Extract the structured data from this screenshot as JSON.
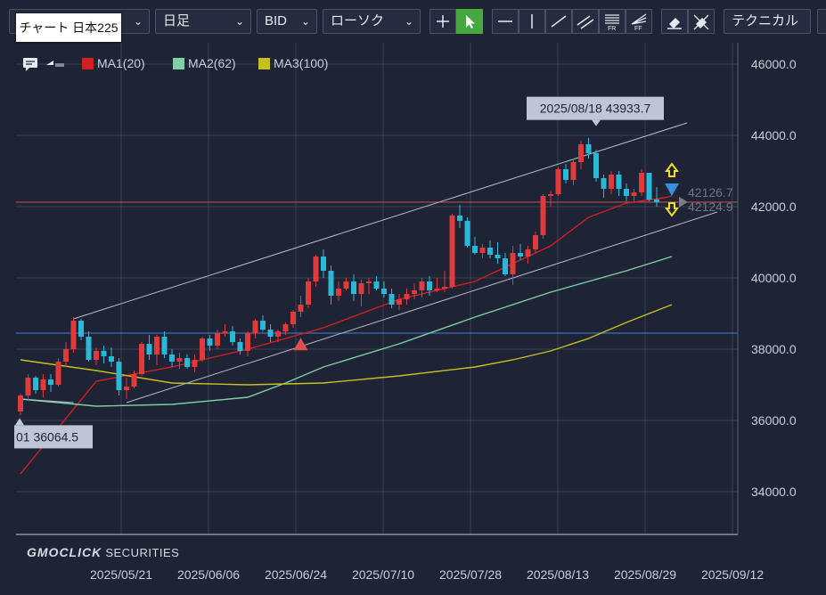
{
  "toolbar": {
    "symbol_label": "チャート 日本225",
    "period_label": "日足",
    "price_type_label": "BID",
    "chart_style_label": "ローソク",
    "technical_label": "テクニカル",
    "tool_icons": [
      "crosshair-icon",
      "cursor-icon",
      "horizontal-line-icon",
      "vertical-line-icon",
      "trend-line-icon",
      "parallel-channel-icon",
      "fibonacci-retracement-icon",
      "fibonacci-fan-icon",
      "eraser-icon",
      "erase-all-icon"
    ]
  },
  "legend": {
    "items": [
      {
        "label": "MA1(20)",
        "color": "#d02020"
      },
      {
        "label": "MA2(62)",
        "color": "#7fcfa8"
      },
      {
        "label": "MA3(100)",
        "color": "#c8c020"
      }
    ]
  },
  "colors": {
    "background": "#1e2335",
    "up_candle": "#e03a3a",
    "down_candle": "#2ab8d6",
    "grid": "#3a4157",
    "channel": "#b8bcc8"
  },
  "chart_data": {
    "type": "candlestick",
    "y_ticks": [
      34000,
      36000,
      38000,
      40000,
      42000,
      44000,
      46000
    ],
    "y_tick_labels": [
      "34000.0",
      "36000.0",
      "38000.0",
      "40000.0",
      "42000.0",
      "44000.0",
      "46000.0"
    ],
    "x_tick_labels": [
      "2025/05/21",
      "2025/06/06",
      "2025/06/24",
      "2025/07/10",
      "2025/07/28",
      "2025/08/13",
      "2025/08/29",
      "2025/09/12"
    ],
    "ylim": [
      32800,
      46600
    ],
    "candles": [
      [
        36250,
        36750,
        36150,
        36700
      ],
      [
        36700,
        37300,
        36550,
        37200
      ],
      [
        37200,
        37250,
        36750,
        36850
      ],
      [
        36850,
        37300,
        36650,
        37150
      ],
      [
        37150,
        37300,
        36800,
        37000
      ],
      [
        37000,
        37750,
        36950,
        37650
      ],
      [
        37650,
        38200,
        37500,
        38000
      ],
      [
        38000,
        38900,
        37900,
        38800
      ],
      [
        38800,
        38850,
        38250,
        38350
      ],
      [
        38350,
        38500,
        37650,
        37700
      ],
      [
        37700,
        38050,
        37550,
        37950
      ],
      [
        37950,
        38100,
        37600,
        37800
      ],
      [
        37800,
        38050,
        37500,
        37650
      ],
      [
        37650,
        37750,
        36700,
        36850
      ],
      [
        36850,
        37200,
        36600,
        36950
      ],
      [
        36950,
        37400,
        36900,
        37300
      ],
      [
        37300,
        38200,
        37250,
        38150
      ],
      [
        38150,
        38400,
        37700,
        37850
      ],
      [
        37850,
        38400,
        37550,
        38350
      ],
      [
        38350,
        38500,
        37750,
        37850
      ],
      [
        37850,
        38000,
        37500,
        37650
      ],
      [
        37650,
        37900,
        37450,
        37750
      ],
      [
        37750,
        37850,
        37450,
        37500
      ],
      [
        37500,
        37850,
        37350,
        37700
      ],
      [
        37700,
        38350,
        37650,
        38300
      ],
      [
        38300,
        38400,
        37950,
        38100
      ],
      [
        38100,
        38550,
        38000,
        38450
      ],
      [
        38450,
        38700,
        38350,
        38500
      ],
      [
        38500,
        38650,
        38100,
        38200
      ],
      [
        38200,
        38300,
        37850,
        37950
      ],
      [
        37950,
        38500,
        37800,
        38450
      ],
      [
        38450,
        38850,
        38300,
        38800
      ],
      [
        38800,
        38950,
        38500,
        38550
      ],
      [
        38550,
        38700,
        38200,
        38350
      ],
      [
        38350,
        38550,
        38200,
        38500
      ],
      [
        38500,
        38750,
        38400,
        38700
      ],
      [
        38700,
        39100,
        38600,
        39050
      ],
      [
        39050,
        39500,
        38900,
        39250
      ],
      [
        39250,
        40000,
        39150,
        39900
      ],
      [
        39900,
        40650,
        39750,
        40600
      ],
      [
        40600,
        40800,
        40000,
        40200
      ],
      [
        40200,
        40350,
        39250,
        39500
      ],
      [
        39500,
        39900,
        39350,
        39700
      ],
      [
        39700,
        40000,
        39650,
        39900
      ],
      [
        39900,
        40100,
        39350,
        39550
      ],
      [
        39550,
        39950,
        39200,
        39850
      ],
      [
        39850,
        40000,
        39550,
        39900
      ],
      [
        39900,
        40050,
        39650,
        39700
      ],
      [
        39700,
        39900,
        39450,
        39550
      ],
      [
        39550,
        39700,
        39150,
        39250
      ],
      [
        39250,
        39550,
        39100,
        39400
      ],
      [
        39400,
        39700,
        39250,
        39550
      ],
      [
        39550,
        39850,
        39400,
        39650
      ],
      [
        39650,
        40000,
        39450,
        39900
      ],
      [
        39900,
        40050,
        39500,
        39650
      ],
      [
        39650,
        40000,
        39600,
        39700
      ],
      [
        39700,
        40200,
        39600,
        39750
      ],
      [
        39750,
        41800,
        39700,
        41750
      ],
      [
        41750,
        42050,
        41400,
        41600
      ],
      [
        41600,
        41700,
        40850,
        40900
      ],
      [
        40900,
        41150,
        40650,
        40700
      ],
      [
        40700,
        40950,
        40550,
        40850
      ],
      [
        40850,
        41050,
        40550,
        40650
      ],
      [
        40650,
        41000,
        40400,
        40550
      ],
      [
        40550,
        40700,
        40050,
        40100
      ],
      [
        40100,
        40900,
        39800,
        40700
      ],
      [
        40700,
        40950,
        40500,
        40600
      ],
      [
        40600,
        40900,
        40400,
        40800
      ],
      [
        40800,
        41300,
        40700,
        41200
      ],
      [
        41200,
        42350,
        41100,
        42300
      ],
      [
        42300,
        42450,
        42000,
        42350
      ],
      [
        42350,
        43100,
        42300,
        43050
      ],
      [
        43050,
        43200,
        42650,
        42750
      ],
      [
        42750,
        43350,
        42600,
        43250
      ],
      [
        43250,
        43850,
        43050,
        43750
      ],
      [
        43750,
        43930,
        43350,
        43500
      ],
      [
        43500,
        43600,
        42700,
        42800
      ],
      [
        42800,
        42900,
        42250,
        42500
      ],
      [
        42500,
        43000,
        42350,
        42900
      ],
      [
        42900,
        43000,
        42300,
        42500
      ],
      [
        42500,
        42650,
        42150,
        42300
      ],
      [
        42300,
        42500,
        42100,
        42400
      ],
      [
        42400,
        43050,
        42300,
        42950
      ],
      [
        42950,
        42950,
        42150,
        42200
      ],
      [
        42200,
        42550,
        42000,
        42126
      ]
    ],
    "series": [
      {
        "name": "MA1(20)",
        "color": "#d02020",
        "x": [
          0,
          10,
          20,
          30,
          40,
          50,
          60,
          70,
          75,
          80,
          85,
          86
        ],
        "y": [
          34500,
          37100,
          37500,
          38000,
          38600,
          39400,
          39900,
          40900,
          41700,
          42100,
          42250,
          42300
        ]
      },
      {
        "name": "MA2(62)",
        "color": "#7fcfa8",
        "x": [
          0,
          10,
          20,
          30,
          35,
          40,
          50,
          60,
          70,
          80,
          86
        ],
        "y": [
          36600,
          36400,
          36450,
          36650,
          37050,
          37500,
          38150,
          38900,
          39600,
          40200,
          40600
        ]
      },
      {
        "name": "MA3(100)",
        "color": "#c8c020",
        "x": [
          0,
          10,
          20,
          30,
          40,
          50,
          60,
          65,
          70,
          75,
          80,
          86
        ],
        "y": [
          37700,
          37400,
          37050,
          37000,
          37050,
          37250,
          37500,
          37700,
          37950,
          38300,
          38750,
          39250
        ]
      }
    ],
    "channel_lines": [
      {
        "x": [
          7,
          88
        ],
        "y": [
          38850,
          44350
        ]
      },
      {
        "x": [
          14,
          92
        ],
        "y": [
          36500,
          41850
        ]
      },
      {
        "x": [
          0,
          7
        ],
        "y": [
          36600,
          36500
        ]
      }
    ],
    "horizontal_lines": [
      {
        "y": 42126.7,
        "color": "#b0504a"
      },
      {
        "y": 38450,
        "color": "#3f6fb8"
      }
    ],
    "annotations": [
      {
        "label": "2025/08/18 43933.7",
        "x": 76,
        "y": 43933.7
      },
      {
        "label": "01 36064.5",
        "x": 0,
        "y": 36064.5
      }
    ],
    "price_labels": [
      {
        "label": "42126.7",
        "y": 42126.7
      },
      {
        "label": "42124.9",
        "y": 42124.9
      }
    ],
    "signals": [
      {
        "type": "buy",
        "x": 37,
        "y": 38120
      },
      {
        "type": "sell",
        "x": 86,
        "y": 42700
      }
    ]
  },
  "watermark": {
    "brand": "GMOCLICK",
    "suffix": "SECURITIES"
  }
}
